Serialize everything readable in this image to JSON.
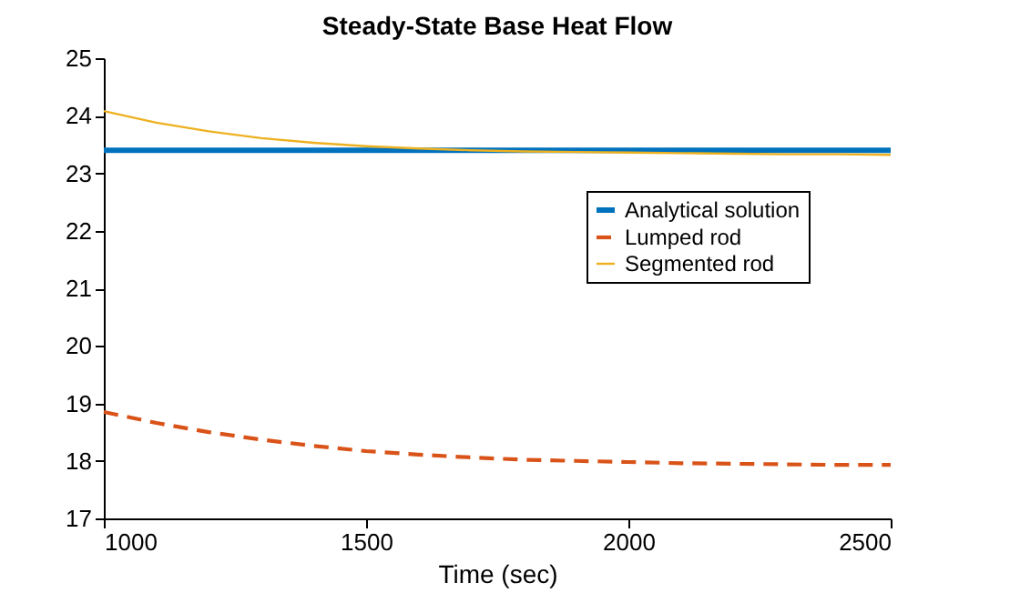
{
  "chart_data": {
    "type": "line",
    "title": "Steady-State Base Heat Flow",
    "xlabel": "Time (sec)",
    "x": [
      1000,
      1100,
      1200,
      1300,
      1400,
      1500,
      1600,
      1700,
      1800,
      1900,
      2000,
      2100,
      2200,
      2300,
      2400,
      2500
    ],
    "series": [
      {
        "name": "Analytical solution",
        "color": "#0072bd",
        "line_style": "solid",
        "values": [
          23.4,
          23.4,
          23.4,
          23.4,
          23.4,
          23.4,
          23.4,
          23.4,
          23.4,
          23.4,
          23.4,
          23.4,
          23.4,
          23.4,
          23.4,
          23.4
        ]
      },
      {
        "name": "Lumped rod",
        "color": "#d95319",
        "line_style": "dashed",
        "values": [
          18.85,
          18.66,
          18.5,
          18.37,
          18.26,
          18.17,
          18.11,
          18.06,
          18.02,
          18.0,
          17.98,
          17.96,
          17.95,
          17.94,
          17.93,
          17.93
        ]
      },
      {
        "name": "Segmented rod",
        "color": "#edb120",
        "line_style": "solid",
        "values": [
          24.08,
          23.88,
          23.73,
          23.61,
          23.53,
          23.47,
          23.43,
          23.4,
          23.38,
          23.37,
          23.36,
          23.35,
          23.34,
          23.33,
          23.33,
          23.32
        ]
      }
    ],
    "xlim": [
      1000,
      2500
    ],
    "xticks": [
      1000,
      1500,
      2000,
      2500
    ],
    "ylim": [
      17,
      25
    ],
    "yticks": [
      17,
      18,
      19,
      20,
      21,
      22,
      23,
      24,
      25
    ],
    "legend": "top right",
    "grid": false
  }
}
